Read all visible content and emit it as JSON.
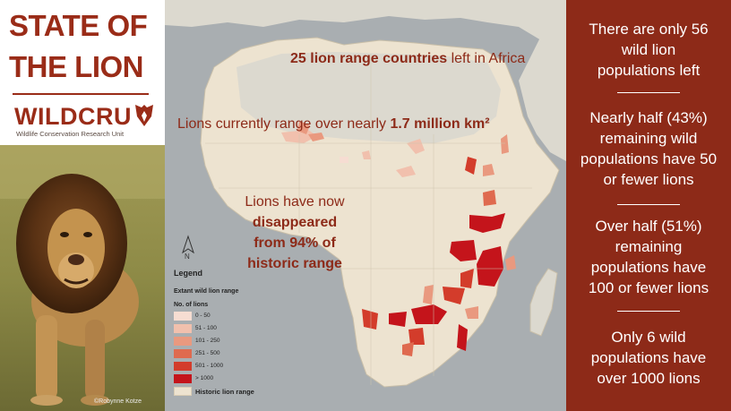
{
  "header": {
    "title_line1": "STATE OF",
    "title_line2": "THE LION",
    "org_name": "WILDCRU",
    "org_subtitle": "Wildlife Conservation Research Unit"
  },
  "photo": {
    "credit": "©Robynne Kotze"
  },
  "map": {
    "headline1_strong": "25 lion range countries",
    "headline1_rest": " left in Africa",
    "headline2_pre": "Lions currently range over nearly ",
    "headline2_strong": "1.7 million km²",
    "headline3_line1": "Lions have now",
    "headline3_line2": "disappeared",
    "headline3_line3": "from 94% of",
    "headline3_line4": "historic range",
    "north_label": "N",
    "legend": {
      "title": "Legend",
      "subtitle": "Extant wild lion range",
      "count_label": "No. of lions",
      "classes": [
        {
          "label": "0 - 50",
          "color": "#f6ddd2"
        },
        {
          "label": "51 - 100",
          "color": "#f1c0ad"
        },
        {
          "label": "101 - 250",
          "color": "#e9997f"
        },
        {
          "label": "251 - 500",
          "color": "#df6a4f"
        },
        {
          "label": "501 - 1000",
          "color": "#d33c2b"
        },
        {
          "label": "> 1000",
          "color": "#c4141b"
        }
      ],
      "historic_label": "Historic lion range",
      "historic_color": "#ede3d0"
    },
    "colors": {
      "sea": "#a9aeb1",
      "land": "#dcd9cf",
      "historic": "#ede3d0",
      "text": "#8d2a18"
    }
  },
  "stats": [
    {
      "text": "There are only 56 wild lion populations left"
    },
    {
      "text": "Nearly half (43%) remaining wild populations have 50 or fewer lions"
    },
    {
      "text": "Over half (51%) remaining populations have 100 or fewer lions"
    },
    {
      "text": "Only 6 wild populations have over 1000 lions"
    }
  ],
  "stat_lines": [
    [
      "There are only 56",
      "wild lion",
      "populations left"
    ],
    [
      "Nearly half (43%)",
      "remaining wild",
      "populations have 50",
      "or fewer lions"
    ],
    [
      "Over half (51%)",
      "remaining",
      "populations have",
      "100 or fewer lions"
    ],
    [
      "Only 6 wild",
      "populations have",
      "over 1000 lions"
    ]
  ]
}
